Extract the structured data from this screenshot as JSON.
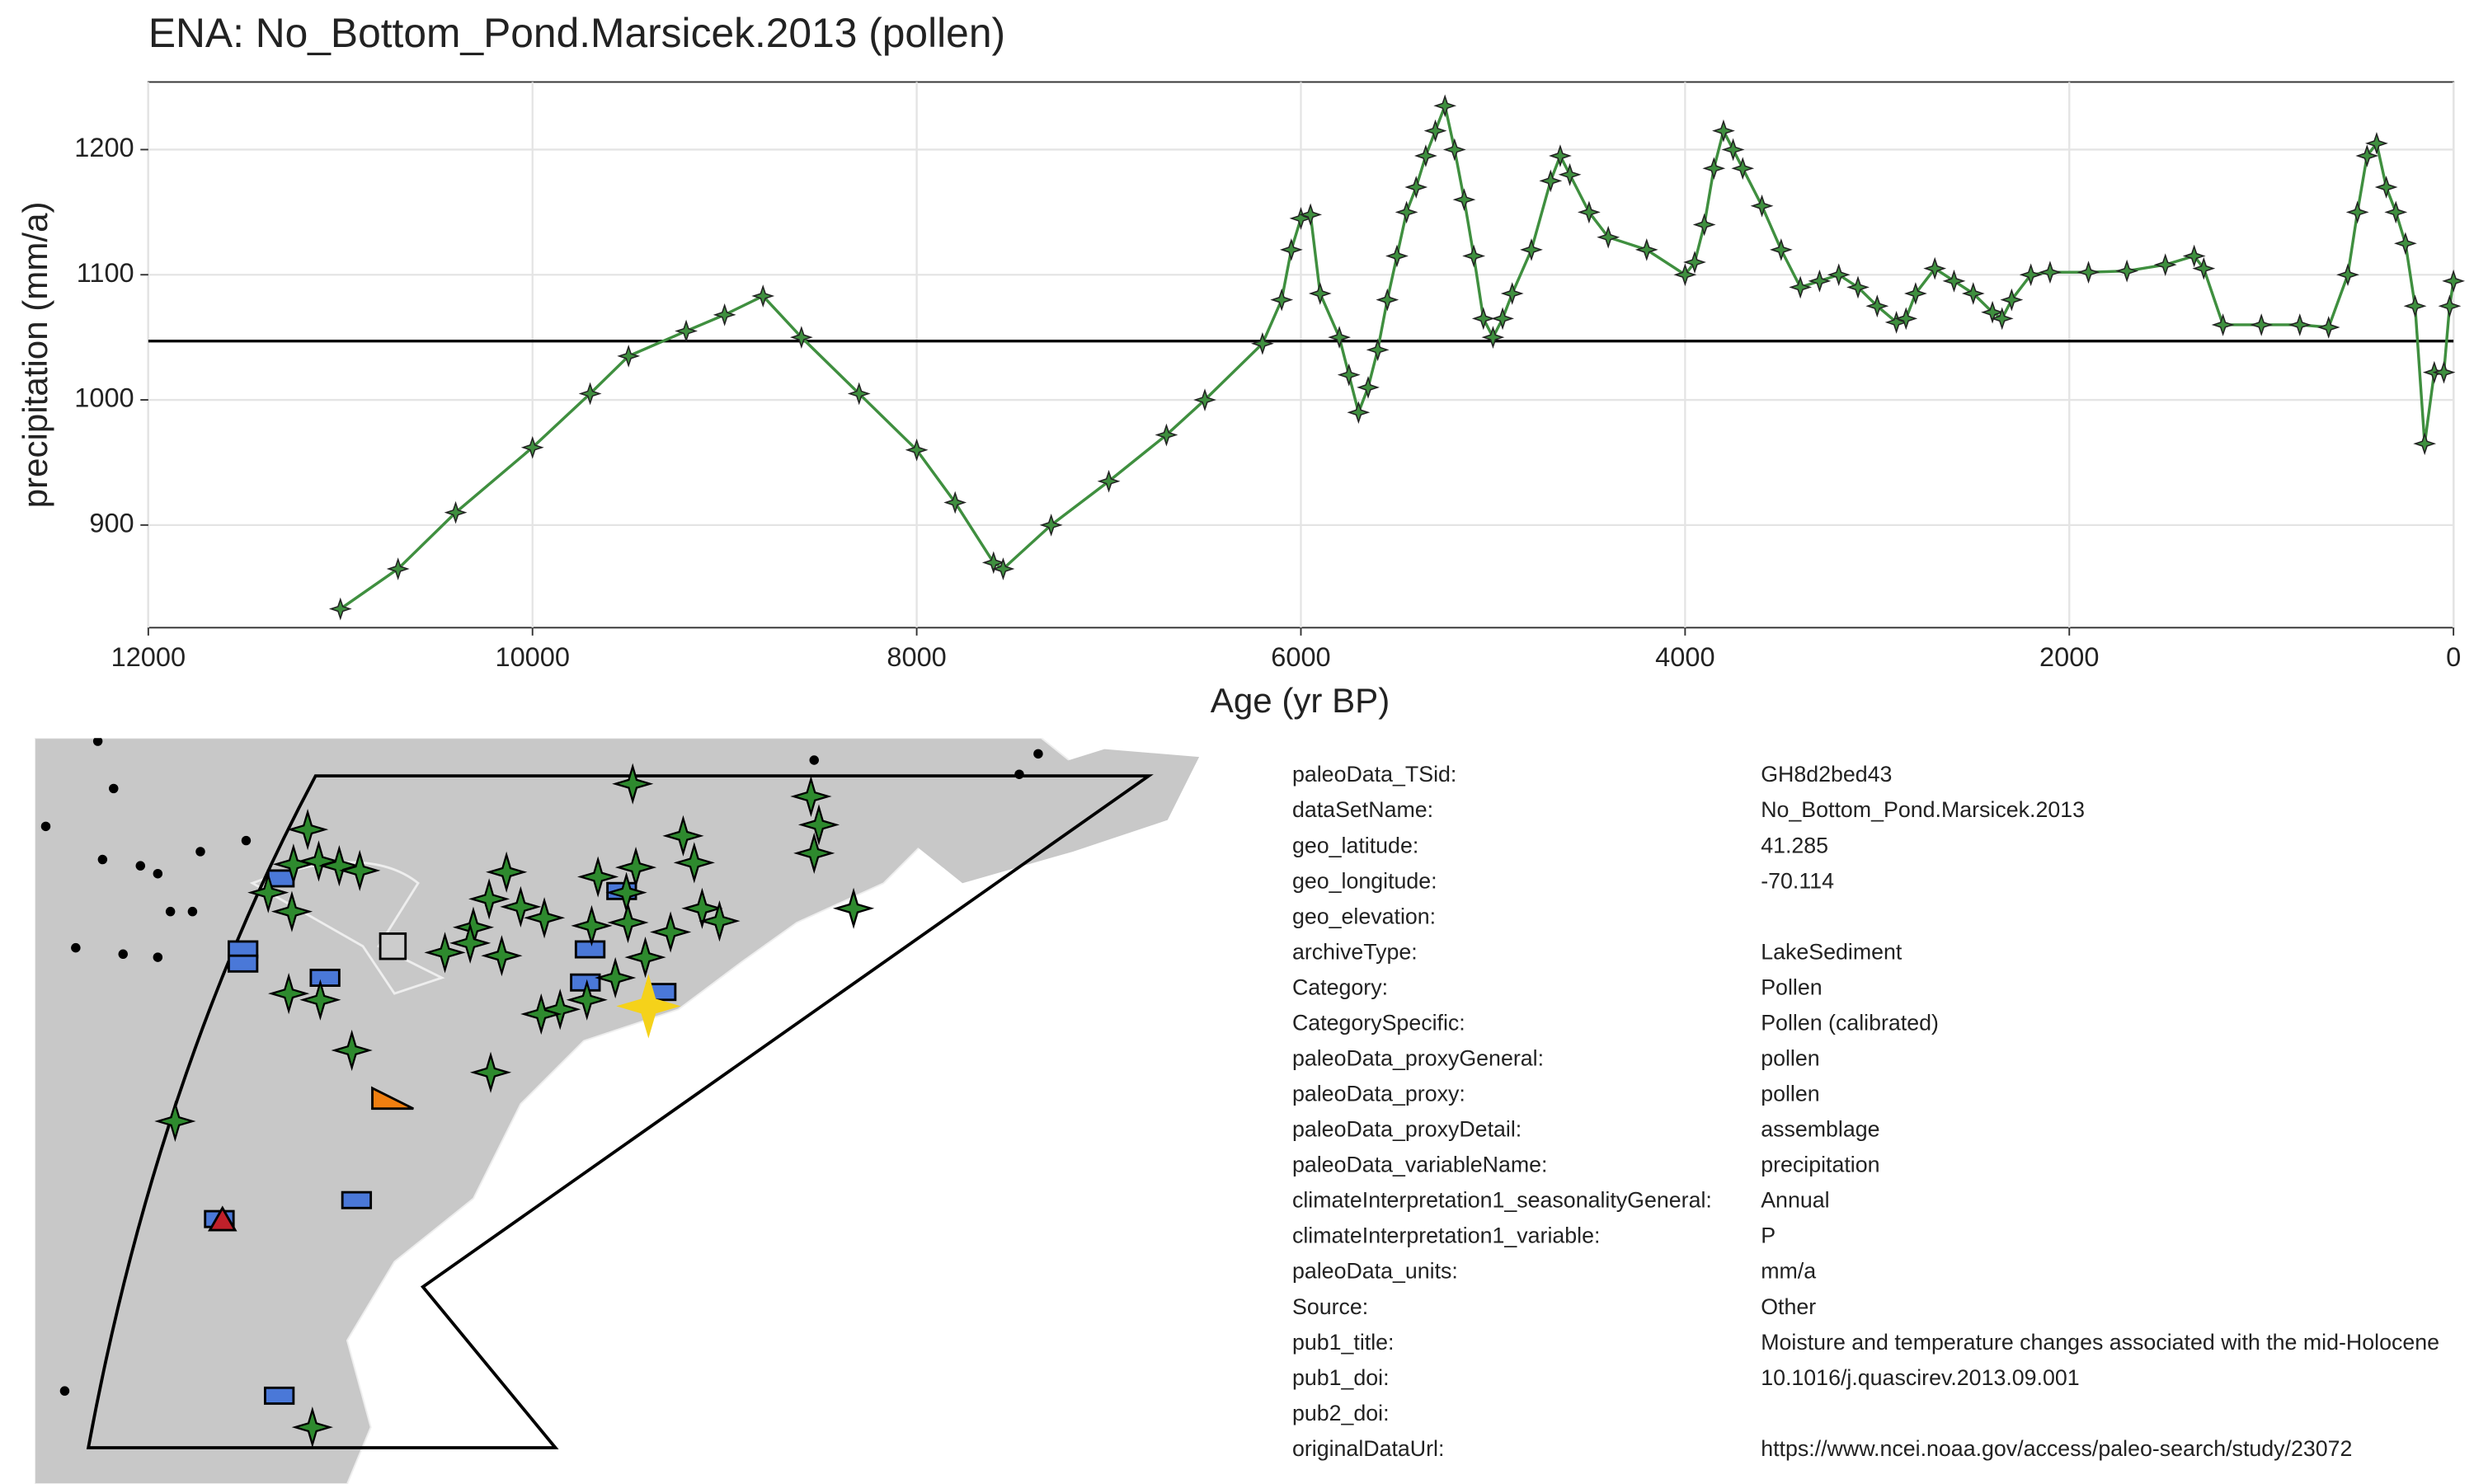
{
  "chart_data": {
    "type": "line",
    "title": "ENA: No_Bottom_Pond.Marsicek.2013 (pollen)",
    "x_label": "Age (yr BP)",
    "y_label": "precipitation (mm/a)",
    "xlim": [
      12000,
      0
    ],
    "xticks": [
      12000,
      10000,
      8000,
      6000,
      4000,
      2000,
      0
    ],
    "ylim": [
      818,
      1254
    ],
    "yticks": [
      900,
      1000,
      1100,
      1200
    ],
    "grid": true,
    "hline": 1047,
    "x": [
      11000,
      10700,
      10400,
      10000,
      9700,
      9500,
      9200,
      9000,
      8800,
      8600,
      8300,
      8000,
      7800,
      7600,
      7550,
      7300,
      7000,
      6700,
      6500,
      6200,
      6100,
      6050,
      6000,
      5950,
      5900,
      5800,
      5750,
      5700,
      5650,
      5600,
      5550,
      5500,
      5450,
      5400,
      5350,
      5300,
      5250,
      5200,
      5150,
      5100,
      5050,
      5000,
      4950,
      4900,
      4800,
      4700,
      4650,
      4600,
      4500,
      4400,
      4200,
      4000,
      3950,
      3900,
      3850,
      3800,
      3750,
      3700,
      3600,
      3500,
      3400,
      3300,
      3200,
      3100,
      3000,
      2900,
      2850,
      2800,
      2700,
      2600,
      2500,
      2400,
      2350,
      2300,
      2200,
      2100,
      1900,
      1700,
      1500,
      1350,
      1300,
      1200,
      1000,
      800,
      650,
      550,
      500,
      450,
      400,
      350,
      300,
      250,
      200,
      150,
      100,
      50,
      20,
      0
    ],
    "series": [
      {
        "name": "precipitation",
        "color": "#3f8f3f",
        "values": [
          833,
          865,
          910,
          962,
          1005,
          1035,
          1055,
          1068,
          1083,
          1050,
          1005,
          960,
          918,
          870,
          865,
          900,
          935,
          972,
          1000,
          1045,
          1080,
          1120,
          1145,
          1148,
          1085,
          1050,
          1020,
          990,
          1010,
          1040,
          1080,
          1115,
          1150,
          1170,
          1195,
          1215,
          1235,
          1200,
          1160,
          1115,
          1065,
          1050,
          1065,
          1085,
          1120,
          1175,
          1195,
          1180,
          1150,
          1130,
          1120,
          1100,
          1110,
          1140,
          1185,
          1215,
          1200,
          1185,
          1155,
          1120,
          1090,
          1095,
          1100,
          1090,
          1075,
          1062,
          1065,
          1085,
          1105,
          1095,
          1085,
          1070,
          1065,
          1080,
          1100,
          1102,
          1102,
          1103,
          1108,
          1115,
          1105,
          1060,
          1060,
          1060,
          1058,
          1100,
          1150,
          1195,
          1205,
          1170,
          1150,
          1125,
          1075,
          965,
          1022,
          1022,
          1075,
          1095
        ]
      }
    ]
  },
  "metadata": [
    {
      "key": "paleoData_TSid:",
      "value": "GH8d2bed43"
    },
    {
      "key": "dataSetName:",
      "value": "No_Bottom_Pond.Marsicek.2013"
    },
    {
      "key": "geo_latitude:",
      "value": "41.285"
    },
    {
      "key": "geo_longitude:",
      "value": "-70.114"
    },
    {
      "key": "geo_elevation:"
    },
    {
      "key": "archiveType:",
      "value": "LakeSediment"
    },
    {
      "key": "Category:",
      "value": "Pollen"
    },
    {
      "key": "CategorySpecific:",
      "value": "Pollen (calibrated)"
    },
    {
      "key": "paleoData_proxyGeneral:",
      "value": "pollen"
    },
    {
      "key": "paleoData_proxy:",
      "value": "pollen"
    },
    {
      "key": "paleoData_proxyDetail:",
      "value": "assemblage"
    },
    {
      "key": "paleoData_variableName:",
      "value": "precipitation"
    },
    {
      "key": "climateInterpretation1_seasonalityGeneral:",
      "value": "Annual"
    },
    {
      "key": "climateInterpretation1_variable:",
      "value": "P"
    },
    {
      "key": "paleoData_units:",
      "value": "mm/a"
    },
    {
      "key": "Source:",
      "value": "Other"
    },
    {
      "key": "pub1_title:",
      "value": "Moisture and temperature changes associated with the mid-Holocene"
    },
    {
      "key": "pub1_doi:",
      "value": "10.1016/j.quascirev.2013.09.001"
    },
    {
      "key": "pub2_doi:"
    },
    {
      "key": "originalDataUrl:",
      "value": "https://www.ncei.noaa.gov/access/paleo-search/study/23072"
    }
  ]
}
